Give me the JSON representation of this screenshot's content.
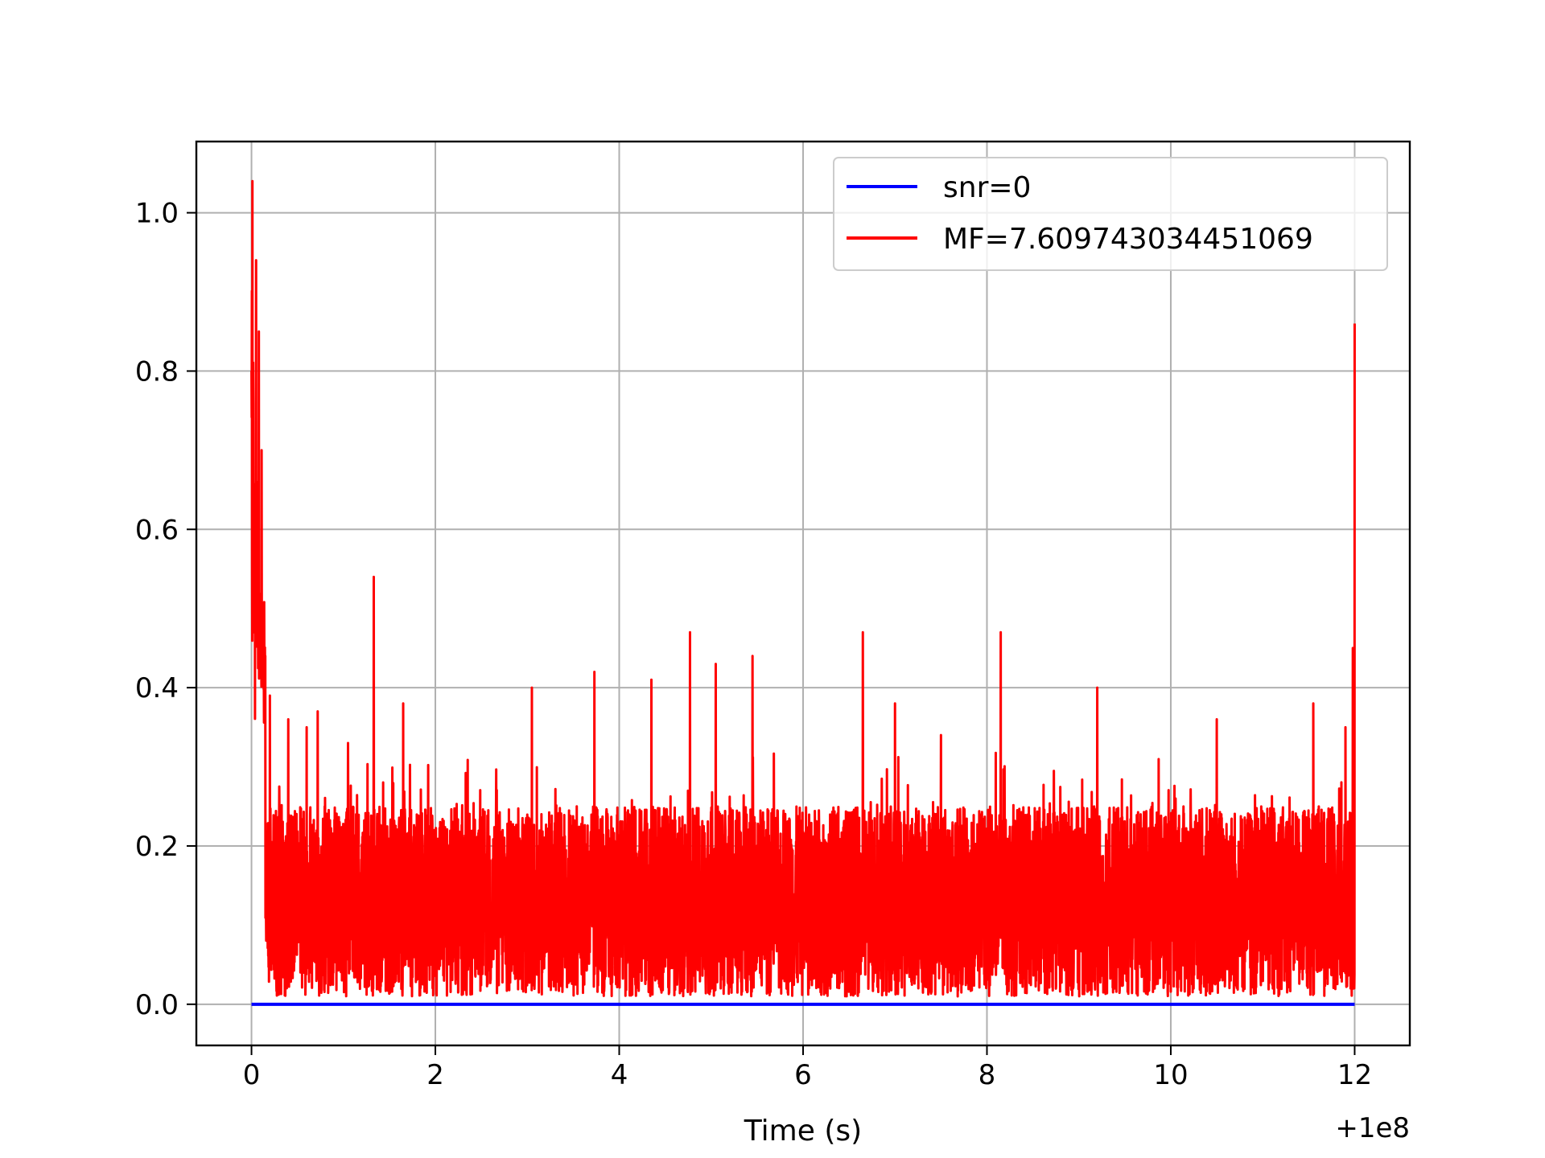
{
  "chart_data": {
    "type": "line",
    "xlabel": "Time (s)",
    "x_offset_label": "+1e8",
    "ylabel": "",
    "title": "",
    "xlim": [
      -0.6,
      12.6
    ],
    "ylim": [
      -0.052,
      1.09
    ],
    "xticks": [
      0,
      2,
      4,
      6,
      8,
      10,
      12
    ],
    "yticks": [
      0.0,
      0.2,
      0.4,
      0.6,
      0.8,
      1.0
    ],
    "ytick_labels": [
      "0.0",
      "0.2",
      "0.4",
      "0.6",
      "0.8",
      "1.0"
    ],
    "grid": true,
    "legend_position": "top-right",
    "series": [
      {
        "name": "snr=0",
        "color": "#0000ff",
        "x": [
          0,
          12
        ],
        "y": [
          0,
          0
        ]
      },
      {
        "name": "MF=7.609743034451069",
        "color": "#ff0000",
        "x_range": [
          0,
          12
        ],
        "noise_base_mean": 0.12,
        "noise_low": 0.01,
        "noise_high": 0.25,
        "peaks": [
          {
            "x": 0.0,
            "y": 0.8
          },
          {
            "x": 0.01,
            "y": 1.04
          },
          {
            "x": 0.03,
            "y": 0.52
          },
          {
            "x": 0.05,
            "y": 0.94
          },
          {
            "x": 0.08,
            "y": 0.85
          },
          {
            "x": 0.11,
            "y": 0.7
          },
          {
            "x": 0.15,
            "y": 0.44
          },
          {
            "x": 0.2,
            "y": 0.39
          },
          {
            "x": 0.4,
            "y": 0.36
          },
          {
            "x": 0.6,
            "y": 0.35
          },
          {
            "x": 0.72,
            "y": 0.37
          },
          {
            "x": 1.05,
            "y": 0.33
          },
          {
            "x": 1.33,
            "y": 0.54
          },
          {
            "x": 1.65,
            "y": 0.38
          },
          {
            "x": 3.05,
            "y": 0.4
          },
          {
            "x": 3.73,
            "y": 0.42
          },
          {
            "x": 4.35,
            "y": 0.41
          },
          {
            "x": 4.77,
            "y": 0.47
          },
          {
            "x": 5.05,
            "y": 0.43
          },
          {
            "x": 5.45,
            "y": 0.44
          },
          {
            "x": 6.65,
            "y": 0.47
          },
          {
            "x": 7.0,
            "y": 0.38
          },
          {
            "x": 7.5,
            "y": 0.34
          },
          {
            "x": 8.15,
            "y": 0.47
          },
          {
            "x": 9.2,
            "y": 0.4
          },
          {
            "x": 10.5,
            "y": 0.36
          },
          {
            "x": 11.55,
            "y": 0.38
          },
          {
            "x": 11.9,
            "y": 0.35
          },
          {
            "x": 11.98,
            "y": 0.45
          },
          {
            "x": 12.0,
            "y": 0.86
          }
        ]
      }
    ]
  }
}
